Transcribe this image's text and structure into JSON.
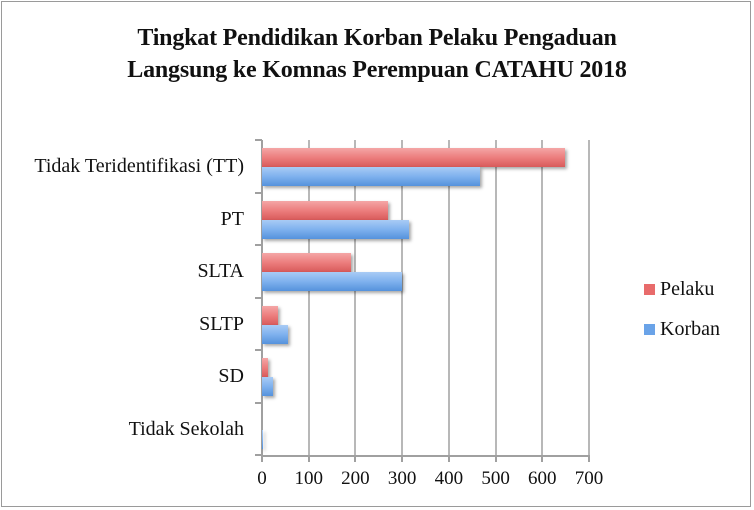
{
  "chart_data": {
    "type": "bar",
    "orientation": "horizontal",
    "title": "Tingkat Pendidikan Korban Pelaku Pengaduan Langsung ke Komnas Perempuan CATAHU 2018",
    "title_lines": [
      "Tingkat Pendidikan Korban Pelaku Pengaduan",
      "Langsung ke Komnas Perempuan CATAHU 2018"
    ],
    "categories": [
      "Tidak Teridentifikasi (TT)",
      "PT",
      "SLTA",
      "SLTP",
      "SD",
      "Tidak Sekolah"
    ],
    "series": [
      {
        "name": "Pelaku",
        "color": "#e86b6b",
        "values": [
          649,
          270,
          191,
          34,
          12,
          0
        ]
      },
      {
        "name": "Korban",
        "color": "#6aa3e8",
        "values": [
          467,
          315,
          300,
          56,
          24,
          2
        ]
      }
    ],
    "xlabel": "",
    "ylabel": "",
    "xlim": [
      0,
      700
    ],
    "x_ticks": [
      "0",
      "100",
      "200",
      "300",
      "400",
      "500",
      "600",
      "700"
    ],
    "grid": true,
    "legend_position": "right",
    "legend": [
      "Pelaku",
      "Korban"
    ]
  }
}
